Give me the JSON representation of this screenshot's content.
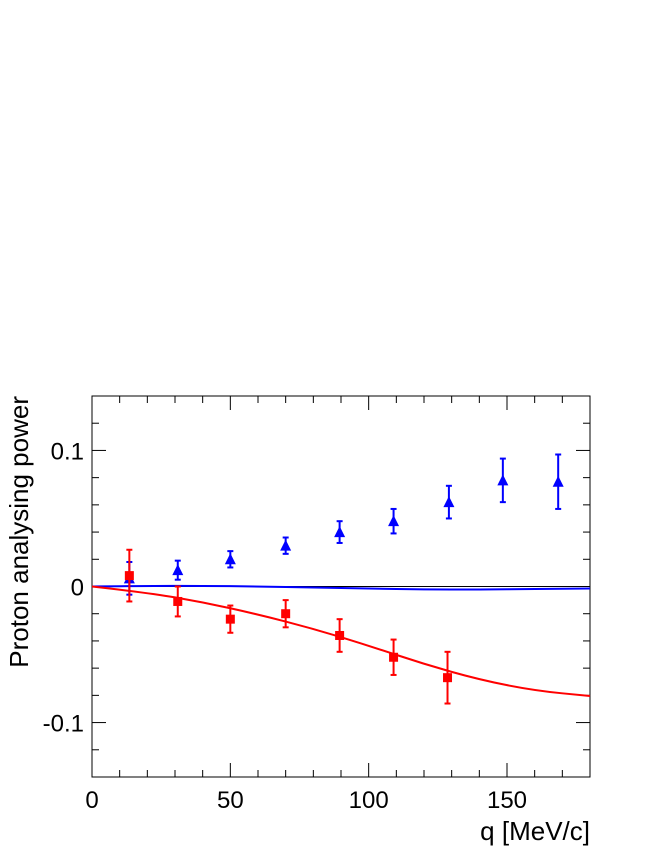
{
  "chart_data": {
    "type": "scatter",
    "title": "",
    "xlabel": "q [MeV/c]",
    "ylabel": "Proton analysing power",
    "xlim": [
      0,
      180
    ],
    "ylim": [
      -0.14,
      0.14
    ],
    "xticks": [
      0,
      50,
      100,
      150
    ],
    "yticks": [
      -0.1,
      0,
      0.1
    ],
    "xtick_labels": [
      "0",
      "50",
      "100",
      "150"
    ],
    "ytick_labels": [
      "-0.1",
      "0",
      "0.1"
    ],
    "grid": false,
    "legend": "none",
    "zero_line": {
      "color": "#000000"
    },
    "series": [
      {
        "marker": "triangle",
        "color": "#0000ff",
        "points": [
          {
            "x": 13.5,
            "y": 0.006,
            "err": 0.012
          },
          {
            "x": 31,
            "y": 0.012,
            "err": 0.007
          },
          {
            "x": 50,
            "y": 0.02,
            "err": 0.006
          },
          {
            "x": 70,
            "y": 0.03,
            "err": 0.006
          },
          {
            "x": 89.5,
            "y": 0.04,
            "err": 0.008
          },
          {
            "x": 109,
            "y": 0.048,
            "err": 0.009
          },
          {
            "x": 129,
            "y": 0.062,
            "err": 0.012
          },
          {
            "x": 148.5,
            "y": 0.078,
            "err": 0.016
          },
          {
            "x": 168.5,
            "y": 0.077,
            "err": 0.02
          }
        ]
      },
      {
        "marker": "square",
        "color": "#ff0000",
        "points": [
          {
            "x": 13.5,
            "y": 0.008,
            "err": 0.019
          },
          {
            "x": 31,
            "y": -0.011,
            "err": 0.011
          },
          {
            "x": 50,
            "y": -0.024,
            "err": 0.01
          },
          {
            "x": 70,
            "y": -0.02,
            "err": 0.01
          },
          {
            "x": 89.5,
            "y": -0.036,
            "err": 0.012
          },
          {
            "x": 109,
            "y": -0.052,
            "err": 0.013
          },
          {
            "x": 128.5,
            "y": -0.067,
            "err": 0.019
          }
        ]
      }
    ],
    "curves": [
      {
        "color": "#0000ff",
        "x": [
          0,
          20,
          40,
          60,
          80,
          100,
          120,
          140,
          160,
          180
        ],
        "y": [
          0.0,
          0.0005,
          0.0005,
          0.0,
          -0.0007,
          -0.0015,
          -0.0022,
          -0.0022,
          -0.0018,
          -0.0015
        ]
      },
      {
        "color": "#ff0000",
        "x": [
          0,
          20,
          40,
          60,
          80,
          100,
          120,
          140,
          160,
          180
        ],
        "y": [
          0.0,
          -0.0045,
          -0.0115,
          -0.0205,
          -0.031,
          -0.0435,
          -0.057,
          -0.0685,
          -0.0765,
          -0.0805
        ]
      }
    ]
  }
}
